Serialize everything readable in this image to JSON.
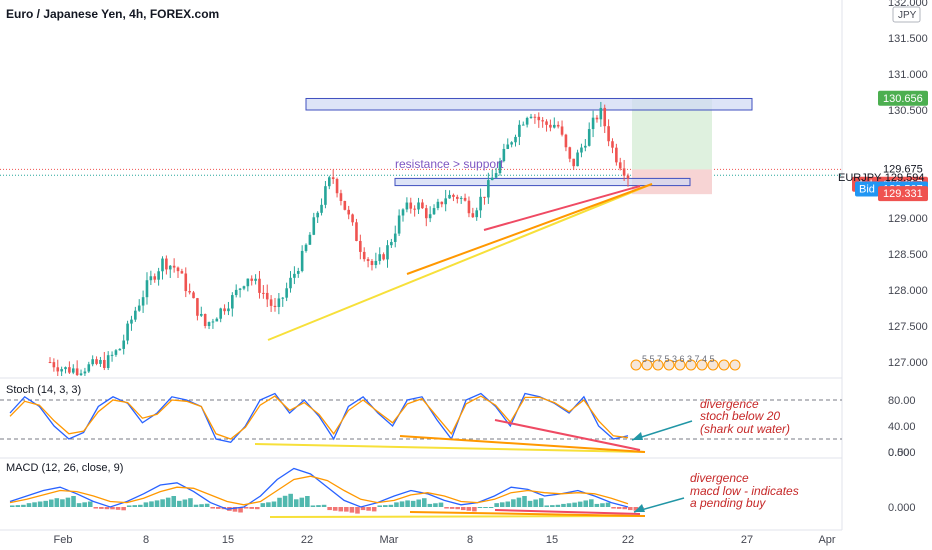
{
  "header": {
    "title": "Euro / Japanese Yen, 4h, FOREX.com"
  },
  "price_scale": {
    "currency_badge": "JPY",
    "ticks": [
      "132.000",
      "131.500",
      "131.000",
      "130.500",
      "129.000",
      "128.500",
      "128.000",
      "127.500",
      "127.000"
    ],
    "tags": {
      "target": "130.656",
      "upper": "129.675",
      "ask_label": "Ask",
      "ask": "129.657",
      "symbol": "EURJPY",
      "last": "129.594",
      "bid_label": "Bid",
      "bid": "129.507",
      "stop": "129.331"
    }
  },
  "time_axis": {
    "labels": [
      "Feb",
      "8",
      "15",
      "22",
      "Mar",
      "8",
      "15",
      "22",
      "27",
      "Apr"
    ]
  },
  "annotations": {
    "zone_label": "resistance > support",
    "stoch_note": [
      "divergence",
      "stoch below 20",
      "(shark out water)"
    ],
    "macd_note": [
      "divergence",
      "macd low - indicates",
      "a pending buy"
    ],
    "event_badges": "5 5 7 5 3 6 3 7 4 5"
  },
  "indicators": {
    "stoch": {
      "title": "Stoch (14, 3, 3)",
      "ticks": [
        "80.00",
        "40.00",
        "0.00"
      ]
    },
    "macd": {
      "title": "MACD (12, 26, close, 9)",
      "ticks": [
        "0.500",
        "0.000"
      ]
    }
  },
  "colors": {
    "up": "#26a69a",
    "down": "#ef5350",
    "trend_yellow": "#f7e03a",
    "trend_orange": "#ff9800",
    "trend_red": "#ef4a63",
    "zone_fill": "#cfd8f4",
    "zone_stroke": "#3f4fbf",
    "target_fill": "#dff1df",
    "stop_fill": "#f7d4d4",
    "stoch_k": "#2962ff",
    "stoch_d": "#ff9800",
    "annotation_red": "#c62828",
    "annotation_arrow": "#2196a6"
  },
  "chart_data": [
    {
      "type": "candlestick",
      "title": "Euro / Japanese Yen, 4h, FOREX.com",
      "ylim": [
        126.8,
        132.2
      ],
      "x": [
        "Feb",
        "8",
        "15",
        "22",
        "Mar",
        "8",
        "15",
        "22",
        "27",
        "Apr"
      ],
      "series": [
        {
          "name": "EURJPY close (approx.)",
          "points": [
            [
              "Feb",
              127.0
            ],
            [
              "2",
              126.9
            ],
            [
              "4",
              126.9
            ],
            [
              "6",
              126.95
            ],
            [
              "8",
              127.0
            ],
            [
              "10",
              127.2
            ],
            [
              "12",
              127.7
            ],
            [
              "13",
              128.1
            ],
            [
              "14",
              128.4
            ],
            [
              "15",
              128.3
            ],
            [
              "17",
              127.9
            ],
            [
              "18",
              127.5
            ],
            [
              "19",
              127.7
            ],
            [
              "20",
              127.9
            ],
            [
              "21",
              128.2
            ],
            [
              "22",
              128.0
            ],
            [
              "23",
              127.7
            ],
            [
              "24",
              128.1
            ],
            [
              "25",
              128.5
            ],
            [
              "26",
              129.1
            ],
            [
              "27",
              129.6
            ],
            [
              "28",
              129.1
            ],
            [
              "Mar",
              128.6
            ],
            [
              "2",
              128.3
            ],
            [
              "3",
              128.6
            ],
            [
              "4",
              129.1
            ],
            [
              "5",
              129.2
            ],
            [
              "6",
              129.0
            ],
            [
              "7",
              129.3
            ],
            [
              "8",
              129.3
            ],
            [
              "9",
              129.1
            ],
            [
              "10",
              129.4
            ],
            [
              "11",
              129.8
            ],
            [
              "12",
              130.2
            ],
            [
              "13",
              130.5
            ],
            [
              "14",
              130.3
            ],
            [
              "15",
              130.3
            ],
            [
              "16",
              129.7
            ],
            [
              "17",
              130.1
            ],
            [
              "18",
              130.5
            ],
            [
              "19",
              129.9
            ],
            [
              "20",
              129.594
            ]
          ]
        }
      ],
      "trade_setup": {
        "entry": 129.594,
        "target": 130.656,
        "stop": 129.331
      },
      "zones": {
        "resistance": [
          130.5,
          130.66
        ],
        "support": [
          129.45,
          129.55
        ]
      }
    },
    {
      "type": "line",
      "title": "Stoch (14, 3, 3)",
      "ylim": [
        0,
        100
      ],
      "levels": [
        80,
        20
      ],
      "series": [
        {
          "name": "%K",
          "values": [
            60,
            85,
            70,
            40,
            20,
            30,
            70,
            85,
            75,
            45,
            60,
            85,
            80,
            70,
            20,
            15,
            40,
            80,
            90,
            60,
            80,
            55,
            20,
            70,
            85,
            60,
            40,
            80,
            85,
            50,
            20,
            80,
            90,
            70,
            40,
            90,
            85,
            75,
            60,
            85,
            40,
            20,
            25
          ]
        },
        {
          "name": "%D",
          "values": [
            55,
            78,
            72,
            48,
            28,
            32,
            62,
            80,
            76,
            52,
            58,
            80,
            78,
            70,
            28,
            20,
            38,
            72,
            86,
            64,
            76,
            58,
            28,
            64,
            80,
            62,
            45,
            74,
            82,
            55,
            28,
            74,
            86,
            72,
            46,
            84,
            84,
            76,
            62,
            80,
            48,
            25,
            22
          ]
        }
      ]
    },
    {
      "type": "bar",
      "title": "MACD (12, 26, close, 9)",
      "ylim": [
        -0.1,
        0.5
      ],
      "series": [
        {
          "name": "Histogram",
          "values": [
            0.02,
            0.05,
            0.08,
            0.1,
            0.05,
            -0.02,
            -0.03,
            0.02,
            0.06,
            0.1,
            0.08,
            0.03,
            -0.02,
            -0.05,
            -0.02,
            0.05,
            0.12,
            0.1,
            0.02,
            -0.04,
            -0.06,
            -0.04,
            0.02,
            0.06,
            0.08,
            0.04,
            -0.02,
            -0.04,
            0.0,
            0.05,
            0.1,
            0.08,
            0.02,
            0.04,
            0.07,
            0.04,
            -0.02,
            -0.04
          ]
        },
        {
          "name": "MACD",
          "values": [
            0.05,
            0.1,
            0.15,
            0.18,
            0.12,
            0.05,
            0.0,
            0.05,
            0.12,
            0.2,
            0.22,
            0.14,
            0.04,
            -0.02,
            0.0,
            0.1,
            0.25,
            0.35,
            0.3,
            0.18,
            0.06,
            0.0,
            0.04,
            0.1,
            0.15,
            0.12,
            0.06,
            0.02,
            0.04,
            0.1,
            0.18,
            0.16,
            0.1,
            0.12,
            0.15,
            0.1,
            0.04,
            0.0
          ]
        },
        {
          "name": "Signal",
          "values": [
            0.04,
            0.07,
            0.11,
            0.15,
            0.14,
            0.1,
            0.05,
            0.04,
            0.08,
            0.14,
            0.18,
            0.17,
            0.11,
            0.05,
            0.02,
            0.05,
            0.15,
            0.25,
            0.28,
            0.24,
            0.15,
            0.07,
            0.04,
            0.06,
            0.11,
            0.13,
            0.1,
            0.05,
            0.04,
            0.07,
            0.13,
            0.15,
            0.13,
            0.12,
            0.13,
            0.12,
            0.08,
            0.03
          ]
        }
      ]
    }
  ]
}
